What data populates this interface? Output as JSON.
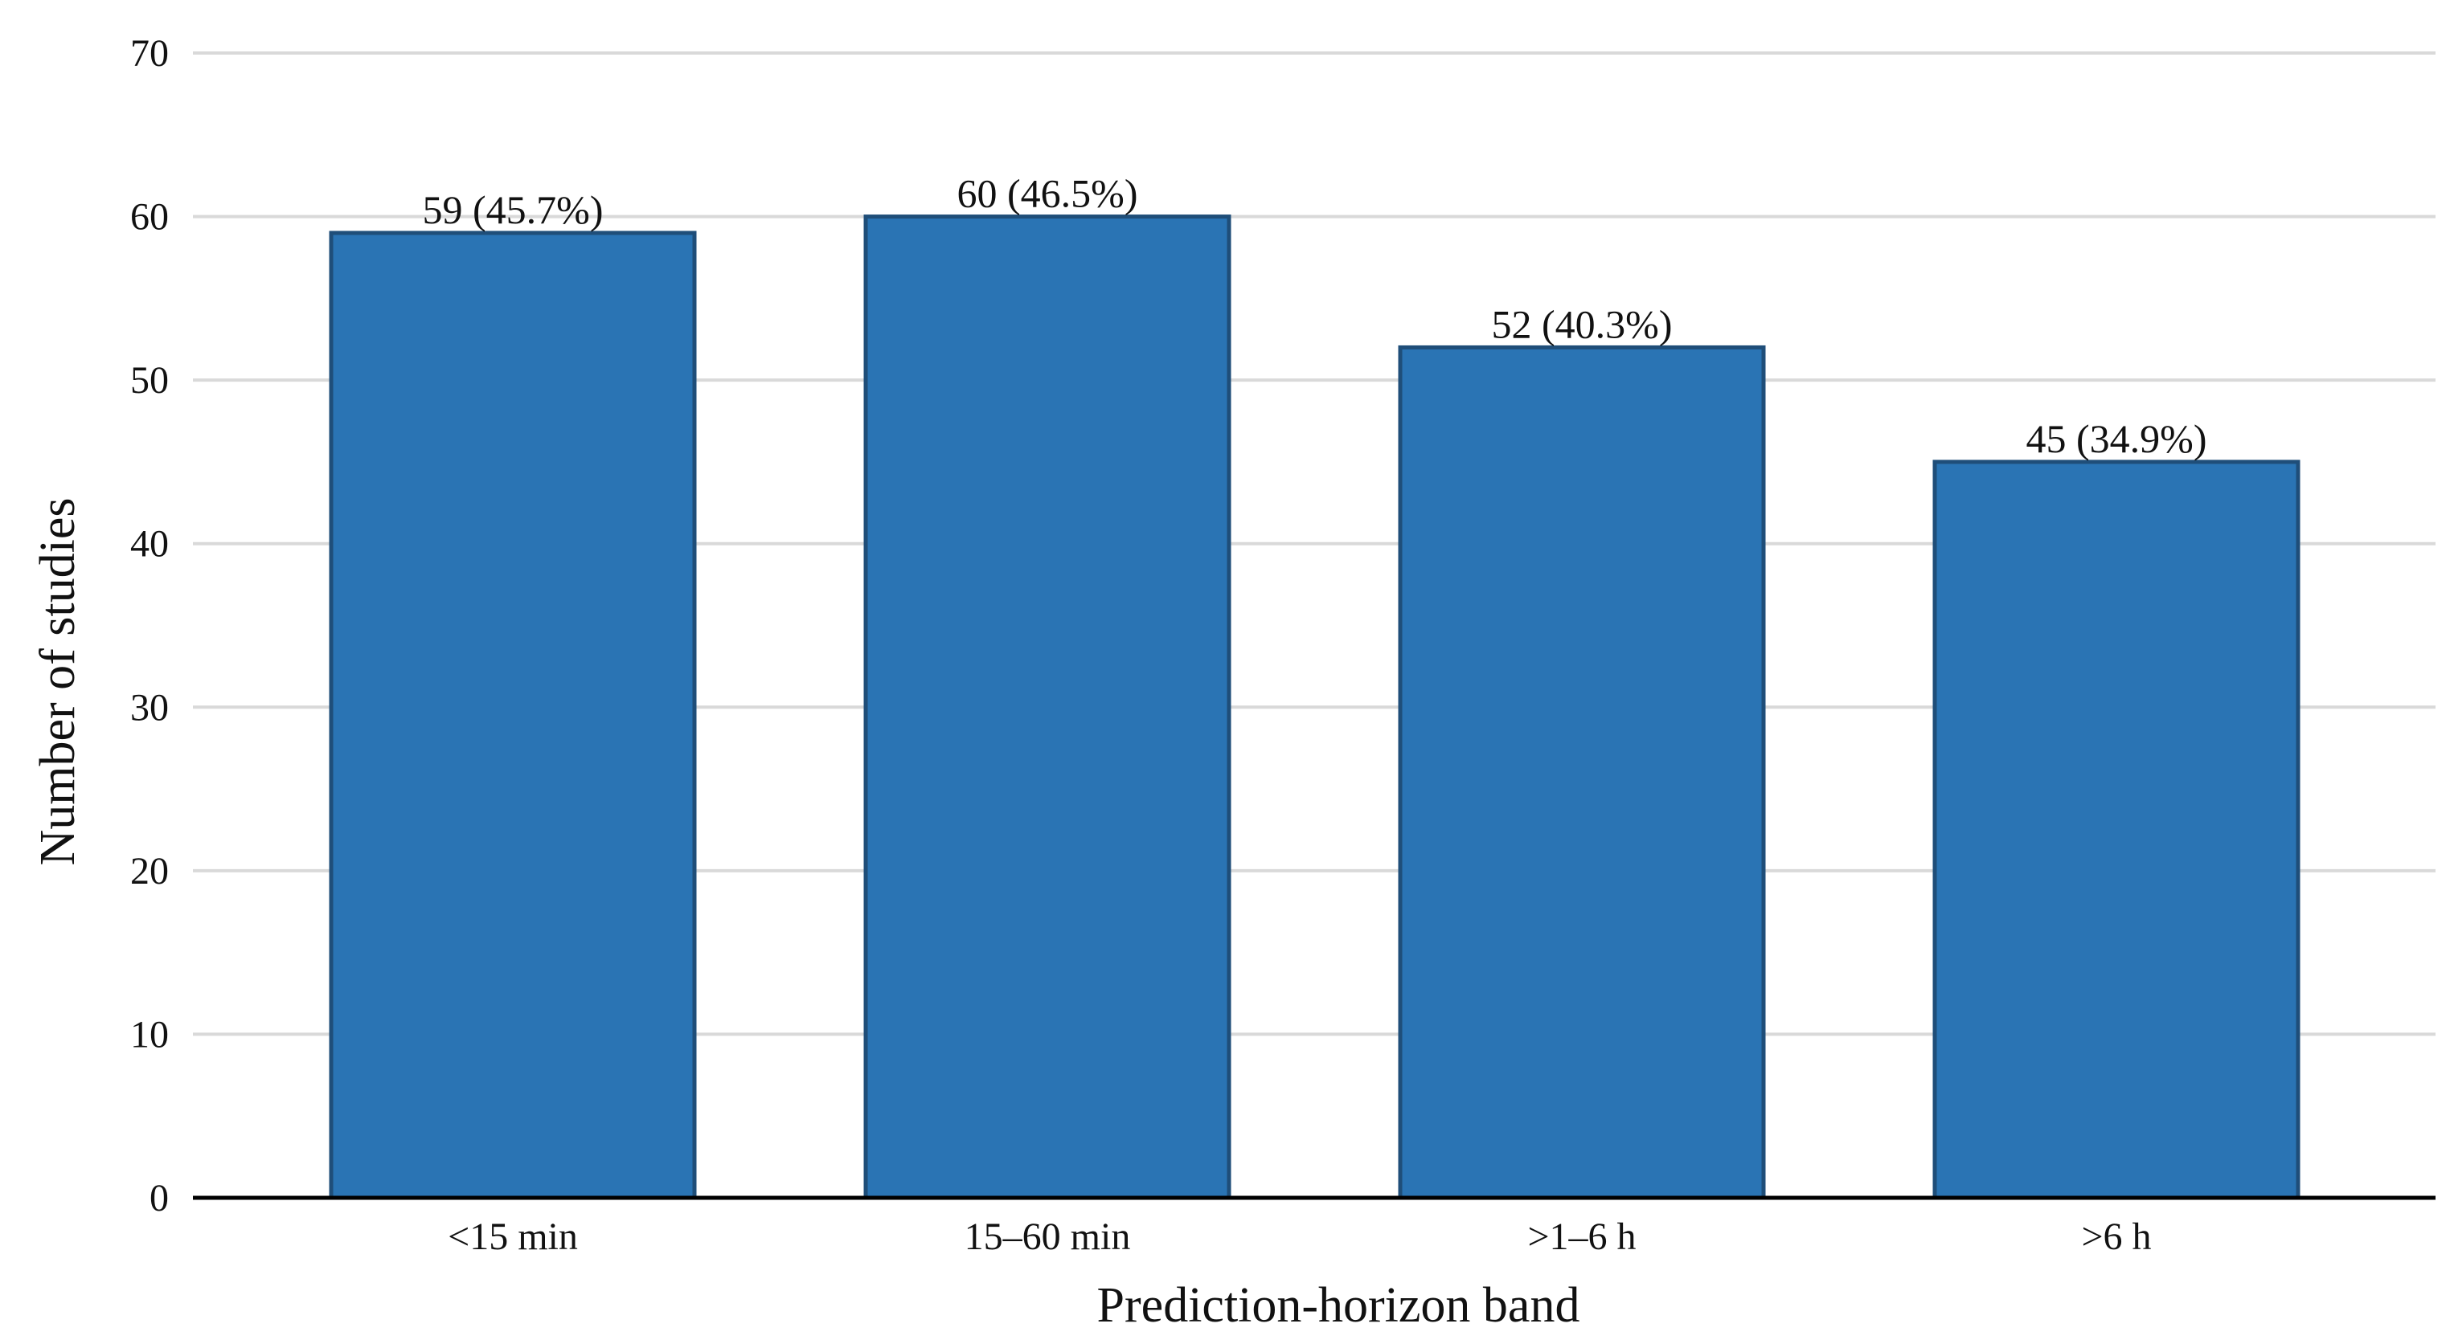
{
  "chart_data": {
    "type": "bar",
    "categories": [
      "<15 min",
      "15–60 min",
      ">1–6 h",
      ">6 h"
    ],
    "values": [
      59,
      60,
      52,
      45
    ],
    "data_labels": [
      "59 (45.7%)",
      "60 (46.5%)",
      "52 (40.3%)",
      "45 (34.9%)"
    ],
    "xlabel": "Prediction-horizon band",
    "ylabel": "Number of studies",
    "ylim": [
      0,
      70
    ],
    "yticks": [
      0,
      10,
      20,
      30,
      40,
      50,
      60,
      70
    ],
    "grid": true,
    "bar_color": "#2a74b4",
    "bar_edge_color": "#1f4e79"
  }
}
